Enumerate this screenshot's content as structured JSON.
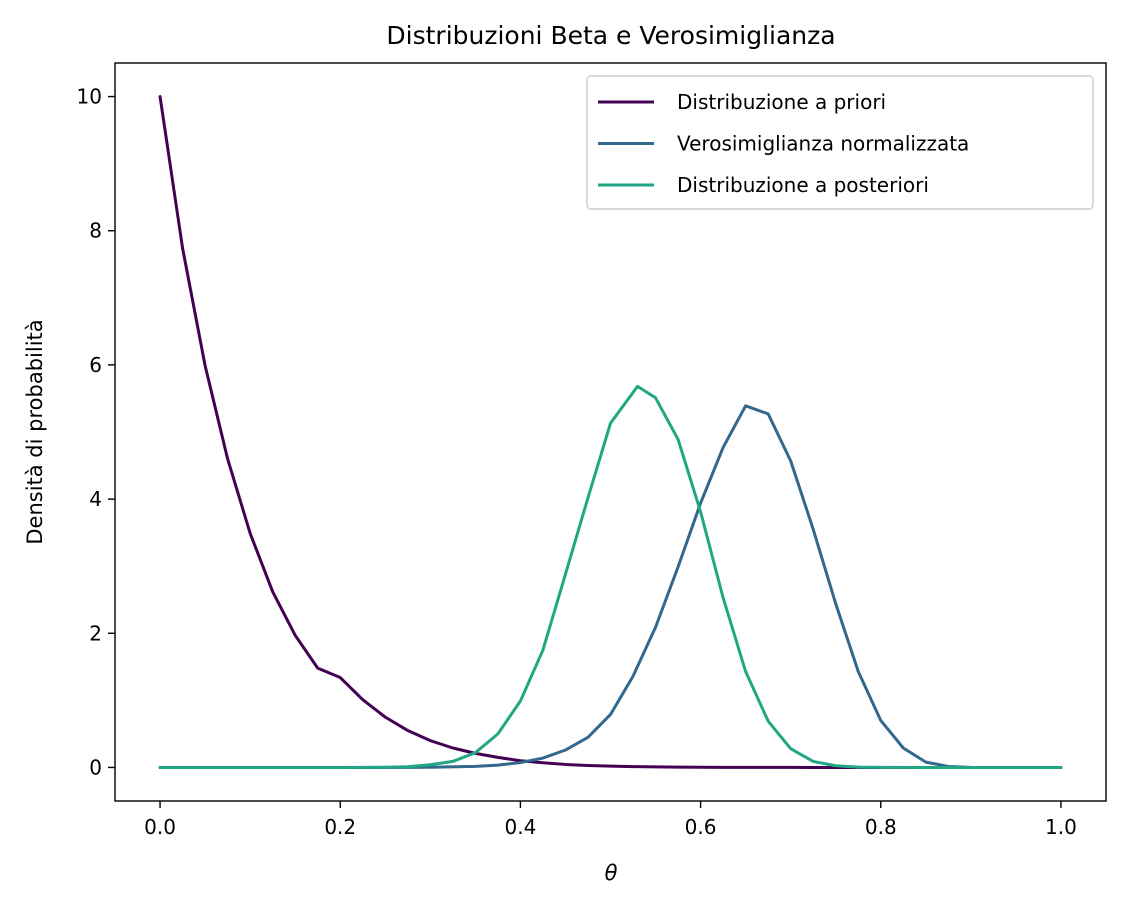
{
  "chart_data": {
    "type": "line",
    "title": "Distribuzioni Beta e Verosimiglianza",
    "xlabel": "θ",
    "ylabel": "Densità di probabilità",
    "xlim": [
      -0.05,
      1.05
    ],
    "ylim": [
      -0.5,
      10.5
    ],
    "xticks": [
      0.0,
      0.2,
      0.4,
      0.6,
      0.8,
      1.0
    ],
    "xtick_labels": [
      "0.0",
      "0.2",
      "0.4",
      "0.6",
      "0.8",
      "1.0"
    ],
    "yticks": [
      0,
      2,
      4,
      6,
      8,
      10
    ],
    "ytick_labels": [
      "0",
      "2",
      "4",
      "6",
      "8",
      "10"
    ],
    "grid": false,
    "legend_position": "top-right",
    "series": [
      {
        "name": "Distribuzione a priori",
        "color": "#440154",
        "x": [
          0.0,
          0.025,
          0.05,
          0.075,
          0.1,
          0.125,
          0.15,
          0.175,
          0.2,
          0.225,
          0.25,
          0.275,
          0.3,
          0.325,
          0.35,
          0.375,
          0.4,
          0.425,
          0.45,
          0.475,
          0.5,
          0.525,
          0.55,
          0.575,
          0.6,
          0.625,
          0.65,
          0.675,
          0.7,
          0.725,
          0.75,
          0.775,
          0.8,
          0.825,
          0.85,
          0.875,
          0.9,
          0.925,
          0.95,
          0.975,
          1.0
        ],
        "y": [
          10.0,
          7.74,
          5.99,
          4.6,
          3.49,
          2.62,
          1.97,
          1.48,
          1.34,
          1.01,
          0.75,
          0.55,
          0.4,
          0.29,
          0.21,
          0.15,
          0.1,
          0.07,
          0.045,
          0.03,
          0.02,
          0.012,
          0.008,
          0.005,
          0.003,
          0.002,
          0.001,
          0.0005,
          0.0003,
          0.0001,
          0.0,
          0.0,
          0.0,
          0.0,
          0.0,
          0.0,
          0.0,
          0.0,
          0.0,
          0.0,
          0.0
        ]
      },
      {
        "name": "Verosimiglianza normalizzata",
        "color": "#31688e",
        "x": [
          0.0,
          0.05,
          0.1,
          0.15,
          0.2,
          0.25,
          0.3,
          0.35,
          0.375,
          0.4,
          0.425,
          0.45,
          0.475,
          0.5,
          0.525,
          0.55,
          0.575,
          0.6,
          0.625,
          0.65,
          0.675,
          0.7,
          0.725,
          0.75,
          0.775,
          0.8,
          0.825,
          0.85,
          0.875,
          0.9,
          0.95,
          1.0
        ],
        "y": [
          0.0,
          0.0,
          0.0,
          0.0,
          0.0,
          0.0,
          0.003,
          0.016,
          0.035,
          0.073,
          0.14,
          0.26,
          0.45,
          0.79,
          1.36,
          2.09,
          2.99,
          3.94,
          4.77,
          5.39,
          5.27,
          4.57,
          3.55,
          2.44,
          1.43,
          0.7,
          0.29,
          0.08,
          0.015,
          0.001,
          0.0,
          0.0
        ]
      },
      {
        "name": "Distribuzione a posteriori",
        "color": "#21a784",
        "x": [
          0.0,
          0.05,
          0.1,
          0.15,
          0.2,
          0.25,
          0.275,
          0.3,
          0.325,
          0.35,
          0.375,
          0.4,
          0.425,
          0.45,
          0.475,
          0.5,
          0.53,
          0.55,
          0.575,
          0.6,
          0.625,
          0.65,
          0.675,
          0.7,
          0.725,
          0.75,
          0.775,
          0.8,
          0.85,
          0.9,
          1.0
        ],
        "y": [
          0.0,
          0.0,
          0.0,
          0.0,
          0.0,
          0.003,
          0.01,
          0.04,
          0.09,
          0.22,
          0.5,
          0.99,
          1.75,
          2.88,
          4.02,
          5.13,
          5.68,
          5.51,
          4.89,
          3.81,
          2.53,
          1.43,
          0.69,
          0.28,
          0.09,
          0.025,
          0.005,
          0.001,
          0.0,
          0.0,
          0.0
        ]
      }
    ]
  }
}
